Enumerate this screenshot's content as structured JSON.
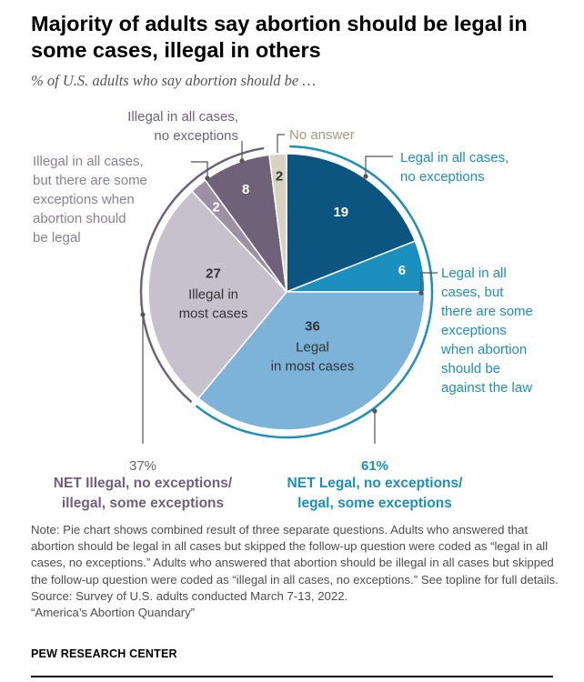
{
  "title": "Majority of adults say abortion should be legal in some cases, illegal in others",
  "subtitle": "% of U.S. adults who say abortion should be …",
  "chart_data": {
    "type": "pie",
    "slices": [
      {
        "name_lines": [
          "Legal in all cases,",
          "no exceptions"
        ],
        "value": 19,
        "color": "#0b5580",
        "label_color": "#ffffff",
        "label_lines": []
      },
      {
        "name_lines": [
          "Legal in all",
          "cases, but",
          "there are some",
          "exceptions",
          "when abortion",
          "should be",
          "against the law"
        ],
        "value": 6,
        "color": "#1b8fbd",
        "label_color": "#ffffff",
        "label_lines": []
      },
      {
        "name_lines": [],
        "value": 36,
        "color": "#7db3d8",
        "label_color": "#333333",
        "label_lines": [
          "Legal",
          "in most cases"
        ]
      },
      {
        "name_lines": [],
        "value": 27,
        "color": "#c7c0cd",
        "label_color": "#333333",
        "label_lines": [
          "Illegal in",
          "most cases"
        ]
      },
      {
        "name_lines": [
          "Illegal in all cases,",
          "but there are some",
          "exceptions when",
          "abortion should",
          "be legal"
        ],
        "value": 2,
        "color": "#9c90a5",
        "label_color": "#ffffff",
        "label_lines": []
      },
      {
        "name_lines": [
          "Illegal in all cases,",
          "no exceptions"
        ],
        "value": 8,
        "color": "#6f6178",
        "label_color": "#ffffff",
        "label_lines": []
      },
      {
        "name_lines": [
          "No answer"
        ],
        "value": 2,
        "color": "#d9d2bf",
        "label_color": "#333333",
        "label_lines": []
      }
    ],
    "nets": [
      {
        "value_label": "37%",
        "label_lines": [
          "NET Illegal, no exceptions/",
          "illegal, some exceptions"
        ],
        "color": "#6f6178"
      },
      {
        "value_label": "61%",
        "label_lines": [
          "NET Legal, no exceptions/",
          "legal, some exceptions"
        ],
        "color": "#1b8fbd"
      }
    ],
    "colors": {
      "legal_text": "#1b8fbd",
      "illegal_text": "#6f6178",
      "no_answer_text": "#a39a7c",
      "callout": "#555555"
    }
  },
  "notes": [
    "Note: Pie chart shows combined result of three separate questions. Adults who answered that abortion should be legal in all cases but skipped the follow-up question were coded as “legal in all cases, no exceptions.” Adults who answered that abortion should be illegal in all cases but skipped the follow-up question were coded as “illegal in all cases, no exceptions.” See topline for full details.",
    "Source: Survey of U.S. adults conducted March 7-13, 2022.",
    "“America’s Abortion Quandary”"
  ],
  "source_brand": "PEW RESEARCH CENTER"
}
